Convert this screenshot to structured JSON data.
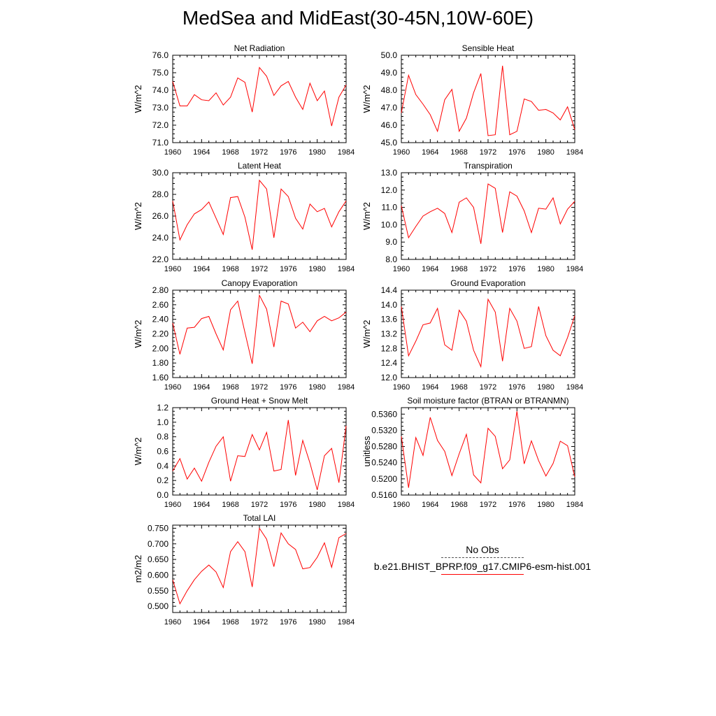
{
  "title": "MedSea and MidEast(30-45N,10W-60E)",
  "colors": {
    "series": "#ff0000",
    "obs": "#555555",
    "axis": "#000000"
  },
  "legend": {
    "obs_label": "No Obs",
    "model_label": "b.e21.BHIST_BPRP.f09_g17.CMIP6-esm-hist.001"
  },
  "chart_data": [
    {
      "type": "line",
      "title": "Net Radiation",
      "ylabel": "W/m^2",
      "xlim": [
        1960,
        1984
      ],
      "ylim": [
        71.0,
        76.0
      ],
      "xticks": [
        "1960",
        "1964",
        "1968",
        "1972",
        "1976",
        "1980",
        "1984"
      ],
      "yticks": [
        "71.0",
        "72.0",
        "73.0",
        "74.0",
        "75.0",
        "76.0"
      ],
      "x": [
        1960,
        1961,
        1962,
        1963,
        1964,
        1965,
        1966,
        1967,
        1968,
        1969,
        1970,
        1971,
        1972,
        1973,
        1974,
        1975,
        1976,
        1977,
        1978,
        1979,
        1980,
        1981,
        1982,
        1983,
        1984
      ],
      "series": [
        {
          "name": "b.e21.BHIST_BPRP.f09_g17.CMIP6-esm-hist.001",
          "values": [
            74.5,
            73.1,
            73.1,
            73.75,
            73.45,
            73.4,
            73.85,
            73.15,
            73.6,
            74.7,
            74.45,
            72.75,
            75.3,
            74.8,
            73.7,
            74.25,
            74.5,
            73.6,
            72.9,
            74.4,
            73.4,
            73.95,
            71.95,
            73.6,
            74.3
          ]
        }
      ]
    },
    {
      "type": "line",
      "title": "Sensible Heat",
      "ylabel": "W/m^2",
      "xlim": [
        1960,
        1984
      ],
      "ylim": [
        45.0,
        50.0
      ],
      "xticks": [
        "1960",
        "1964",
        "1968",
        "1972",
        "1976",
        "1980",
        "1984"
      ],
      "yticks": [
        "45.0",
        "46.0",
        "47.0",
        "48.0",
        "49.0",
        "50.0"
      ],
      "x": [
        1960,
        1961,
        1962,
        1963,
        1964,
        1965,
        1966,
        1967,
        1968,
        1969,
        1970,
        1971,
        1972,
        1973,
        1974,
        1975,
        1976,
        1977,
        1978,
        1979,
        1980,
        1981,
        1982,
        1983,
        1984
      ],
      "series": [
        {
          "name": "b.e21.BHIST_BPRP.f09_g17.CMIP6-esm-hist.001",
          "values": [
            46.7,
            48.85,
            47.75,
            47.2,
            46.6,
            45.65,
            47.45,
            48.05,
            45.65,
            46.4,
            47.85,
            48.95,
            45.4,
            45.45,
            49.4,
            45.45,
            45.65,
            47.5,
            47.35,
            46.85,
            46.9,
            46.7,
            46.3,
            47.05,
            45.75
          ]
        }
      ]
    },
    {
      "type": "line",
      "title": "Latent Heat",
      "ylabel": "W/m^2",
      "xlim": [
        1960,
        1984
      ],
      "ylim": [
        22.0,
        30.0
      ],
      "xticks": [
        "1960",
        "1964",
        "1968",
        "1972",
        "1976",
        "1980",
        "1984"
      ],
      "yticks": [
        "22.0",
        "24.0",
        "26.0",
        "28.0",
        "30.0"
      ],
      "x": [
        1960,
        1961,
        1962,
        1963,
        1964,
        1965,
        1966,
        1967,
        1968,
        1969,
        1970,
        1971,
        1972,
        1973,
        1974,
        1975,
        1976,
        1977,
        1978,
        1979,
        1980,
        1981,
        1982,
        1983,
        1984
      ],
      "series": [
        {
          "name": "b.e21.BHIST_BPRP.f09_g17.CMIP6-esm-hist.001",
          "values": [
            27.4,
            23.8,
            25.2,
            26.2,
            26.6,
            27.3,
            25.8,
            24.3,
            27.7,
            27.8,
            25.9,
            22.9,
            29.3,
            28.5,
            24.0,
            28.5,
            27.8,
            25.8,
            24.8,
            27.1,
            26.4,
            26.7,
            25.0,
            26.4,
            27.4
          ]
        }
      ]
    },
    {
      "type": "line",
      "title": "Transpiration",
      "ylabel": "W/m^2",
      "xlim": [
        1960,
        1984
      ],
      "ylim": [
        8.0,
        13.0
      ],
      "xticks": [
        "1960",
        "1964",
        "1968",
        "1972",
        "1976",
        "1980",
        "1984"
      ],
      "yticks": [
        "8.0",
        "9.0",
        "10.0",
        "11.0",
        "12.0",
        "13.0"
      ],
      "x": [
        1960,
        1961,
        1962,
        1963,
        1964,
        1965,
        1966,
        1967,
        1968,
        1969,
        1970,
        1971,
        1972,
        1973,
        1974,
        1975,
        1976,
        1977,
        1978,
        1979,
        1980,
        1981,
        1982,
        1983,
        1984
      ],
      "series": [
        {
          "name": "b.e21.BHIST_BPRP.f09_g17.CMIP6-esm-hist.001",
          "values": [
            11.1,
            9.25,
            9.9,
            10.5,
            10.75,
            10.95,
            10.65,
            9.55,
            11.3,
            11.55,
            11.0,
            8.9,
            12.35,
            12.1,
            9.55,
            11.9,
            11.65,
            10.8,
            9.55,
            10.95,
            10.9,
            11.55,
            10.05,
            10.9,
            11.35
          ]
        }
      ]
    },
    {
      "type": "line",
      "title": "Canopy Evaporation",
      "ylabel": "W/m^2",
      "xlim": [
        1960,
        1984
      ],
      "ylim": [
        1.6,
        2.8
      ],
      "xticks": [
        "1960",
        "1964",
        "1968",
        "1972",
        "1976",
        "1980",
        "1984"
      ],
      "yticks": [
        "1.60",
        "1.80",
        "2.00",
        "2.20",
        "2.40",
        "2.60",
        "2.80"
      ],
      "x": [
        1960,
        1961,
        1962,
        1963,
        1964,
        1965,
        1966,
        1967,
        1968,
        1969,
        1970,
        1971,
        1972,
        1973,
        1974,
        1975,
        1976,
        1977,
        1978,
        1979,
        1980,
        1981,
        1982,
        1983,
        1984
      ],
      "series": [
        {
          "name": "b.e21.BHIST_BPRP.f09_g17.CMIP6-esm-hist.001",
          "values": [
            2.35,
            1.92,
            2.28,
            2.29,
            2.41,
            2.44,
            2.2,
            1.98,
            2.53,
            2.65,
            2.22,
            1.79,
            2.73,
            2.54,
            2.02,
            2.65,
            2.61,
            2.28,
            2.36,
            2.23,
            2.38,
            2.44,
            2.38,
            2.42,
            2.5
          ]
        }
      ]
    },
    {
      "type": "line",
      "title": "Ground Evaporation",
      "ylabel": "W/m^2",
      "xlim": [
        1960,
        1984
      ],
      "ylim": [
        12.0,
        14.4
      ],
      "xticks": [
        "1960",
        "1964",
        "1968",
        "1972",
        "1976",
        "1980",
        "1984"
      ],
      "yticks": [
        "12.0",
        "12.4",
        "12.8",
        "13.2",
        "13.6",
        "14.0",
        "14.4"
      ],
      "x": [
        1960,
        1961,
        1962,
        1963,
        1964,
        1965,
        1966,
        1967,
        1968,
        1969,
        1970,
        1971,
        1972,
        1973,
        1974,
        1975,
        1976,
        1977,
        1978,
        1979,
        1980,
        1981,
        1982,
        1983,
        1984
      ],
      "series": [
        {
          "name": "b.e21.BHIST_BPRP.f09_g17.CMIP6-esm-hist.001",
          "values": [
            13.95,
            12.6,
            13.0,
            13.45,
            13.5,
            13.9,
            12.9,
            12.75,
            13.85,
            13.55,
            12.75,
            12.3,
            14.15,
            13.8,
            12.45,
            13.9,
            13.55,
            12.8,
            12.85,
            13.95,
            13.15,
            12.75,
            12.6,
            13.1,
            13.7
          ]
        }
      ]
    },
    {
      "type": "line",
      "title": "Ground Heat + Snow Melt",
      "ylabel": "W/m^2",
      "xlim": [
        1960,
        1984
      ],
      "ylim": [
        0.0,
        1.2
      ],
      "xticks": [
        "1960",
        "1964",
        "1968",
        "1972",
        "1976",
        "1980",
        "1984"
      ],
      "yticks": [
        "0.0",
        "0.2",
        "0.4",
        "0.6",
        "0.8",
        "1.0",
        "1.2"
      ],
      "x": [
        1960,
        1961,
        1962,
        1963,
        1964,
        1965,
        1966,
        1967,
        1968,
        1969,
        1970,
        1971,
        1972,
        1973,
        1974,
        1975,
        1976,
        1977,
        1978,
        1979,
        1980,
        1981,
        1982,
        1983,
        1984
      ],
      "series": [
        {
          "name": "b.e21.BHIST_BPRP.f09_g17.CMIP6-esm-hist.001",
          "values": [
            0.33,
            0.5,
            0.22,
            0.37,
            0.19,
            0.45,
            0.67,
            0.8,
            0.19,
            0.54,
            0.53,
            0.83,
            0.62,
            0.86,
            0.33,
            0.35,
            1.03,
            0.27,
            0.75,
            0.44,
            0.07,
            0.54,
            0.64,
            0.17,
            0.95
          ]
        }
      ]
    },
    {
      "type": "line",
      "title": "Soil moisture factor (BTRAN or BTRANMN)",
      "ylabel": "unitless",
      "xlim": [
        1960,
        1984
      ],
      "ylim": [
        0.516,
        0.5376
      ],
      "xticks": [
        "1960",
        "1964",
        "1968",
        "1972",
        "1976",
        "1980",
        "1984"
      ],
      "yticks": [
        "0.5160",
        "0.5200",
        "0.5240",
        "0.5280",
        "0.5320",
        "0.5360"
      ],
      "x": [
        1960,
        1961,
        1962,
        1963,
        1964,
        1965,
        1966,
        1967,
        1968,
        1969,
        1970,
        1971,
        1972,
        1973,
        1974,
        1975,
        1976,
        1977,
        1978,
        1979,
        1980,
        1981,
        1982,
        1983,
        1984
      ],
      "series": [
        {
          "name": "b.e21.BHIST_BPRP.f09_g17.CMIP6-esm-hist.001",
          "values": [
            0.5305,
            0.5178,
            0.5302,
            0.5258,
            0.5352,
            0.5295,
            0.5268,
            0.5208,
            0.5262,
            0.531,
            0.521,
            0.519,
            0.5325,
            0.5305,
            0.5225,
            0.5247,
            0.5367,
            0.5237,
            0.5294,
            0.5245,
            0.5207,
            0.5238,
            0.5293,
            0.5282,
            0.5205
          ]
        }
      ]
    },
    {
      "type": "line",
      "title": "Total LAI",
      "ylabel": "m2/m2",
      "xlim": [
        1960,
        1984
      ],
      "ylim": [
        0.48,
        0.76
      ],
      "xticks": [
        "1960",
        "1964",
        "1968",
        "1972",
        "1976",
        "1980",
        "1984"
      ],
      "yticks": [
        "0.500",
        "0.550",
        "0.600",
        "0.650",
        "0.700",
        "0.750"
      ],
      "x": [
        1960,
        1961,
        1962,
        1963,
        1964,
        1965,
        1966,
        1967,
        1968,
        1969,
        1970,
        1971,
        1972,
        1973,
        1974,
        1975,
        1976,
        1977,
        1978,
        1979,
        1980,
        1981,
        1982,
        1983,
        1984
      ],
      "series": [
        {
          "name": "b.e21.BHIST_BPRP.f09_g17.CMIP6-esm-hist.001",
          "values": [
            0.585,
            0.508,
            0.55,
            0.585,
            0.612,
            0.632,
            0.61,
            0.56,
            0.675,
            0.707,
            0.675,
            0.562,
            0.75,
            0.715,
            0.627,
            0.735,
            0.7,
            0.682,
            0.62,
            0.624,
            0.657,
            0.703,
            0.625,
            0.72,
            0.733
          ]
        }
      ]
    }
  ]
}
